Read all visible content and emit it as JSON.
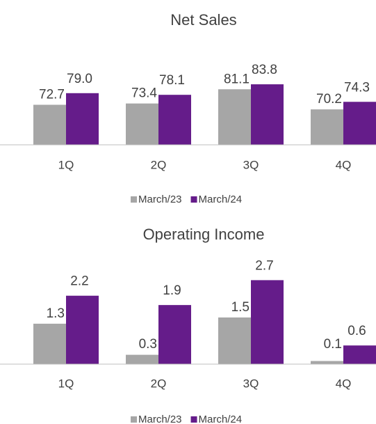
{
  "chart_data": [
    {
      "type": "bar",
      "title": "Net Sales",
      "categories": [
        "1Q",
        "2Q",
        "3Q",
        "4Q"
      ],
      "series": [
        {
          "name": "March/23",
          "color": "#a6a6a6",
          "values": [
            72.7,
            73.4,
            81.1,
            70.2
          ],
          "value_labels": [
            "72.7",
            "73.4",
            "81.1",
            "70.2"
          ]
        },
        {
          "name": "March/24",
          "color": "#651c8a",
          "values": [
            79.0,
            78.1,
            83.8,
            74.3
          ],
          "value_labels": [
            "79.0",
            "78.1",
            "83.8",
            "74.3"
          ]
        }
      ],
      "ylim": [
        51,
        91
      ]
    },
    {
      "type": "bar",
      "title": "Operating Income",
      "categories": [
        "1Q",
        "2Q",
        "3Q",
        "4Q"
      ],
      "series": [
        {
          "name": "March/23",
          "color": "#a6a6a6",
          "values": [
            1.3,
            0.3,
            1.5,
            0.1
          ]
        },
        {
          "name": "March/24",
          "color": "#651c8a",
          "values": [
            2.2,
            1.9,
            2.7,
            0.6
          ]
        }
      ],
      "ylim": [
        0,
        3
      ]
    }
  ]
}
